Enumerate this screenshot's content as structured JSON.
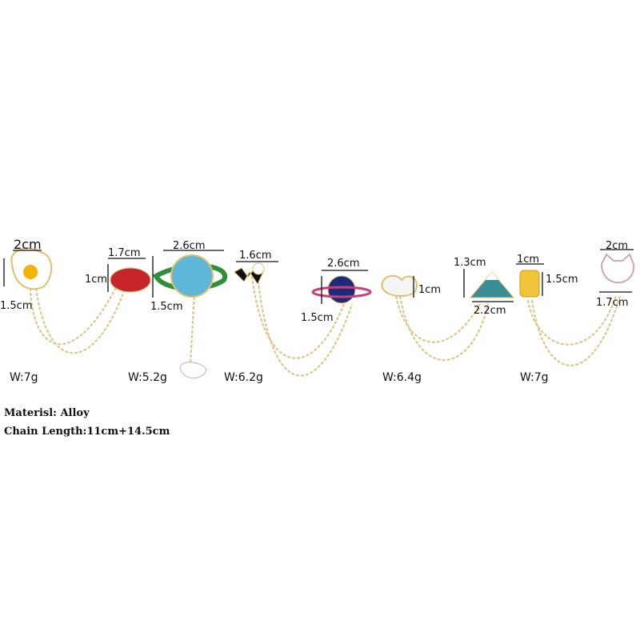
{
  "dimensions": {
    "egg_width": "2cm",
    "egg_height": "1.5cm",
    "lips_width": "1.7cm",
    "lips_height": "1cm",
    "saturn_width": "2.6cm",
    "saturn_height": "1.5cm",
    "bolt_width": "1.6cm",
    "planet_width": "2.6cm",
    "planet_height": "1.5cm",
    "cloud_height": "1cm",
    "fuji_height": "1.3cm",
    "fuji_width": "2.2cm",
    "bar_width": "1cm",
    "bar_height": "1.5cm",
    "cat_width": "2cm",
    "cat_height": "1.7cm"
  },
  "weights": [
    "W:7g",
    "W:5.2g",
    "W:6.2g",
    "W:6.4g",
    "W:7g"
  ],
  "material": "Materisl: Alloy",
  "chain_length": "Chain Length:11cm+14.5cm"
}
